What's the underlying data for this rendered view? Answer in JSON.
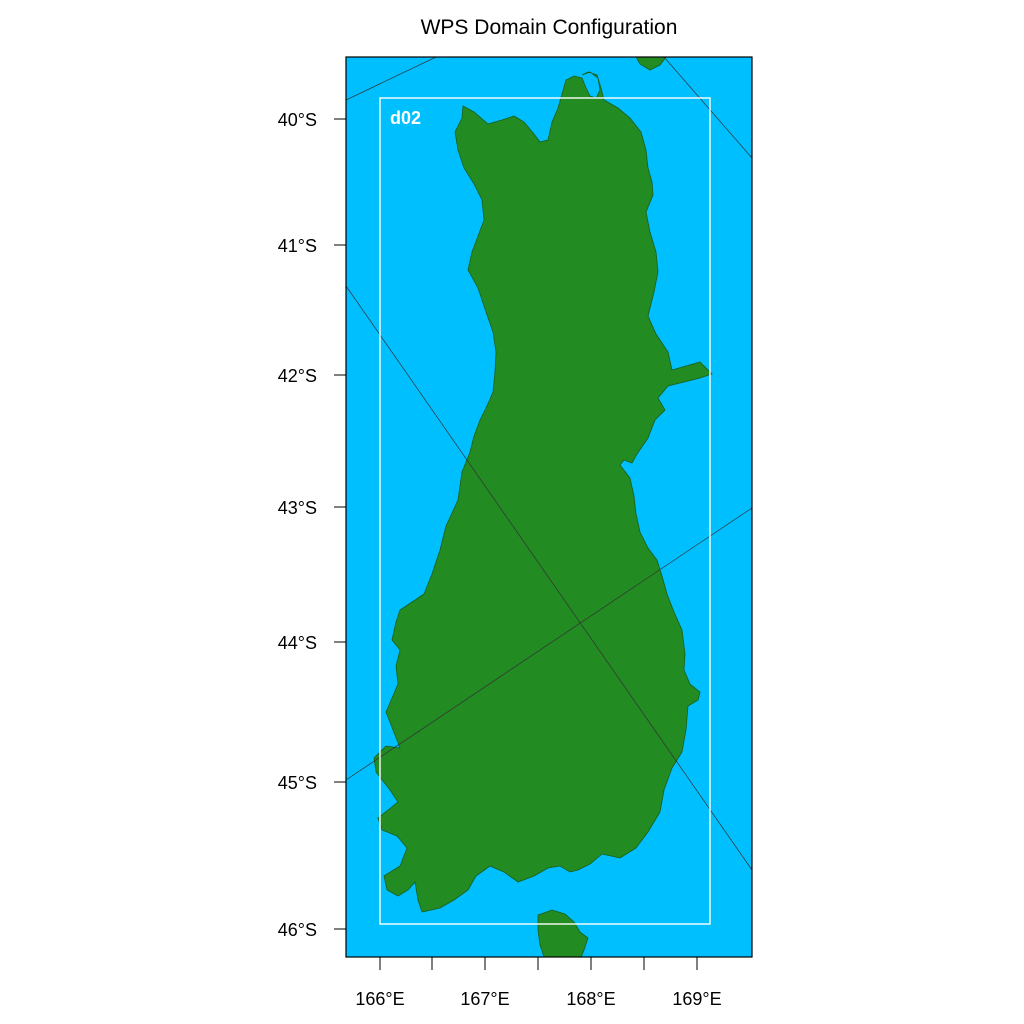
{
  "map": {
    "title": "WPS Domain Configuration",
    "domain_label": "d02",
    "lat_ticks": [
      "40°S",
      "41°S",
      "42°S",
      "43°S",
      "44°S",
      "45°S",
      "46°S"
    ],
    "lon_ticks": [
      "166°E",
      "167°E",
      "168°E",
      "169°E"
    ],
    "colors": {
      "ocean": "#00bfff",
      "land": "#228b22",
      "domain_box": "#ffffff",
      "frame": "#000000"
    }
  }
}
